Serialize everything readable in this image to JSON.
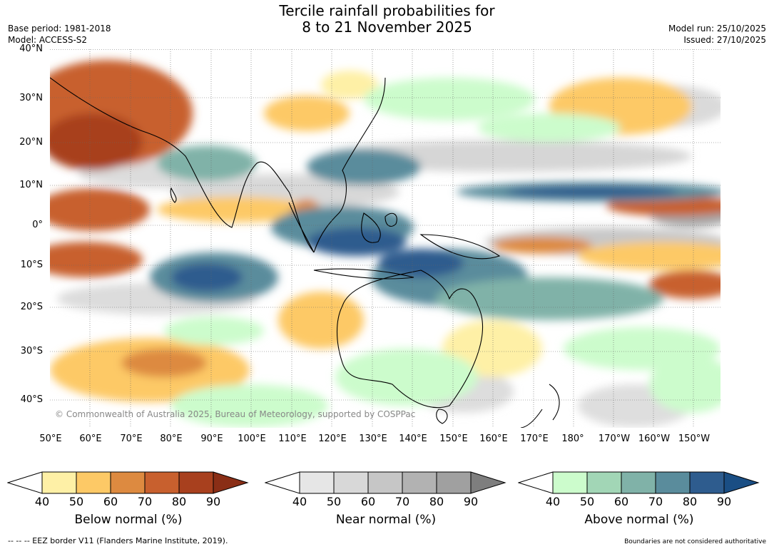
{
  "title": {
    "line1": "Tercile rainfall probabilities for",
    "line2": "8 to 21 November 2025"
  },
  "meta_left": {
    "base_period": "Base period: 1981-2018",
    "model": "Model: ACCESS-S2"
  },
  "meta_right": {
    "model_run": "Model run: 25/10/2025",
    "issued": "Issued: 27/10/2025"
  },
  "map": {
    "lat_labels": [
      "40°N",
      "30°N",
      "20°N",
      "10°N",
      "0°",
      "10°S",
      "20°S",
      "30°S",
      "40°S"
    ],
    "lon_labels": [
      "50°E",
      "60°E",
      "70°E",
      "80°E",
      "90°E",
      "100°E",
      "110°E",
      "120°E",
      "130°E",
      "140°E",
      "150°E",
      "160°E",
      "170°E",
      "180°",
      "170°W",
      "160°W",
      "150°W"
    ],
    "copyright": "© Commonwealth of Australia 2025, Bureau of Meteorology, supported by COSPPac"
  },
  "colorbars": [
    {
      "name": "below",
      "label": "Below normal (%)",
      "ticks": [
        "40",
        "50",
        "60",
        "70",
        "80",
        "90"
      ],
      "colors": [
        "#fef0a6",
        "#fdc966",
        "#dd8a40",
        "#c8602e",
        "#a8401e",
        "#8a2e16"
      ]
    },
    {
      "name": "near",
      "label": "Near normal (%)",
      "ticks": [
        "40",
        "50",
        "60",
        "70",
        "80",
        "90"
      ],
      "colors": [
        "#e6e6e6",
        "#d8d8d8",
        "#c6c6c6",
        "#b2b2b2",
        "#a0a0a0",
        "#7e7e7e"
      ]
    },
    {
      "name": "above",
      "label": "Above normal (%)",
      "ticks": [
        "40",
        "50",
        "60",
        "70",
        "80",
        "90"
      ],
      "colors": [
        "#ccfccc",
        "#a2d6b6",
        "#80b2a8",
        "#5a8c9c",
        "#2e5c8e",
        "#1a4e84"
      ]
    }
  ],
  "footnote_left": "--  --  -- EEZ border V11 (Flanders Marine Institute, 2019).",
  "footnote_right": "Boundaries are not considered authoritative"
}
